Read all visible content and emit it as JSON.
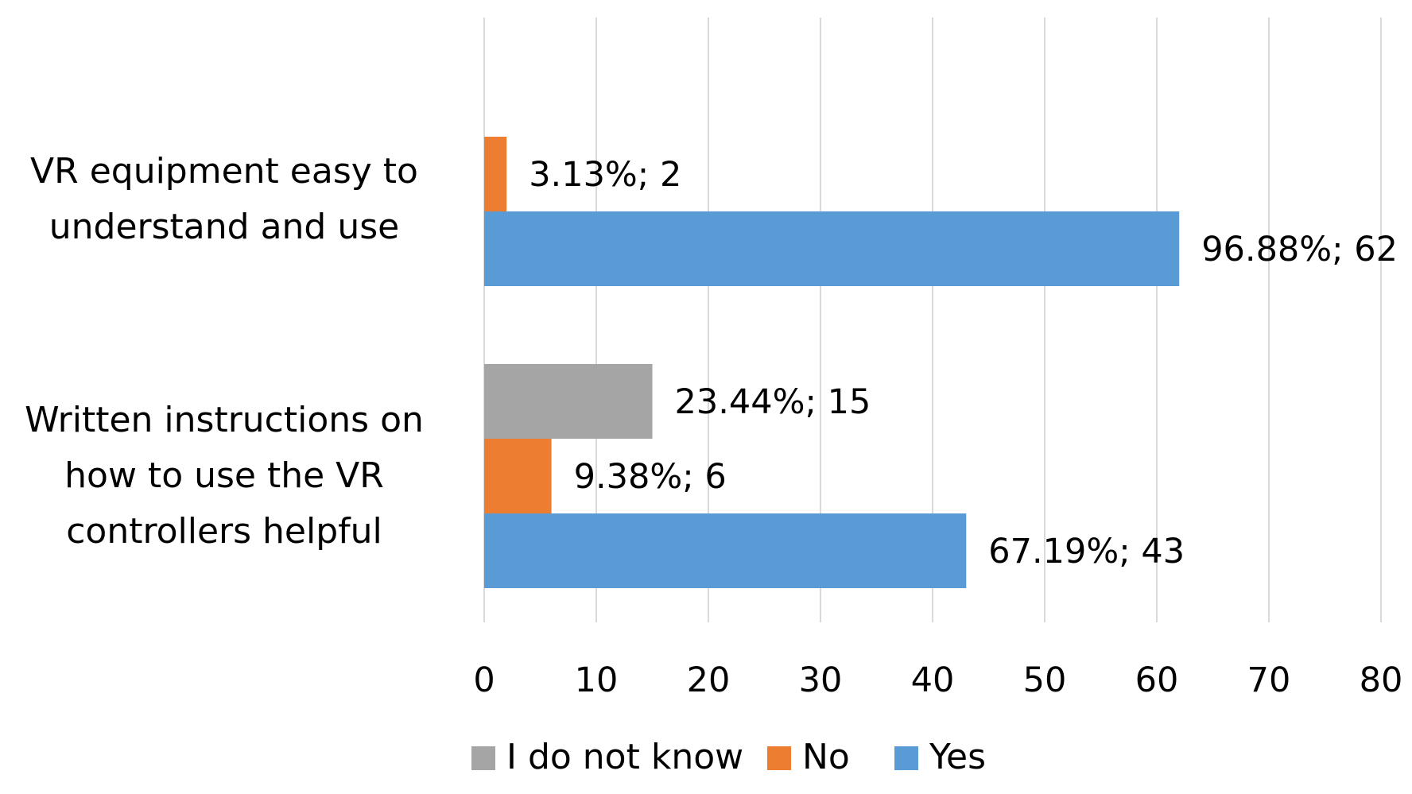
{
  "chart_data": {
    "type": "bar",
    "orientation": "horizontal",
    "title": "",
    "xlabel": "",
    "ylabel": "",
    "categories": [
      [
        "VR equipment easy to",
        "understand and use"
      ],
      [
        "Written instructions on",
        "how to use the VR",
        "controllers helpful"
      ]
    ],
    "series": [
      {
        "name": "I do not know",
        "color": "#A5A5A5",
        "values": [
          null,
          15
        ],
        "labels": [
          null,
          "23.44%; 15"
        ]
      },
      {
        "name": "No",
        "color": "#ED7D31",
        "values": [
          2,
          6
        ],
        "labels": [
          "3.13%; 2",
          "9.38%; 6"
        ]
      },
      {
        "name": "Yes",
        "color": "#5B9BD5",
        "values": [
          62,
          43
        ],
        "labels": [
          "96.88%; 62",
          "67.19%; 43"
        ]
      }
    ],
    "xlim": [
      0,
      80
    ],
    "xticks": [
      0,
      10,
      20,
      30,
      40,
      50,
      60,
      70,
      80
    ],
    "grid": "vertical",
    "legend": "bottom"
  }
}
